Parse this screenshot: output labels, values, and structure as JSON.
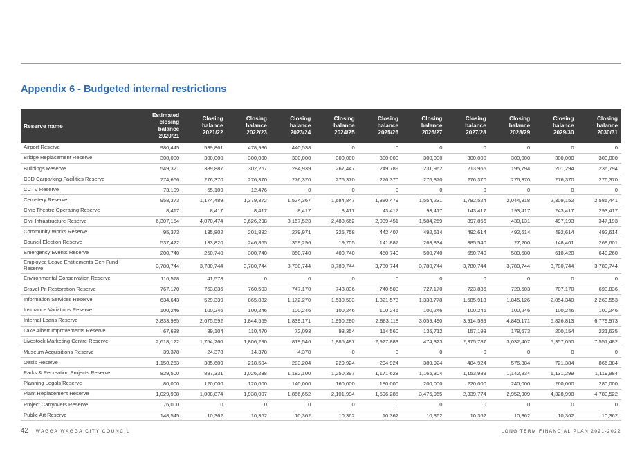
{
  "title": "Appendix 6 - Budgeted internal restrictions",
  "table": {
    "headers": [
      "Reserve name",
      "Estimated closing balance 2020/21",
      "Closing balance 2021/22",
      "Closing balance 2022/23",
      "Closing balance 2023/24",
      "Closing balance 2024/25",
      "Closing balance 2025/26",
      "Closing balance 2026/27",
      "Closing balance 2027/28",
      "Closing balance 2028/29",
      "Closing balance 2029/30",
      "Closing balance 2030/31"
    ],
    "rows": [
      [
        "Airport Reserve",
        "980,445",
        "539,861",
        "478,986",
        "440,538",
        "0",
        "0",
        "0",
        "0",
        "0",
        "0",
        "0"
      ],
      [
        "Bridge Replacement Reserve",
        "300,000",
        "300,000",
        "300,000",
        "300,000",
        "300,000",
        "300,000",
        "300,000",
        "300,000",
        "300,000",
        "300,000",
        "300,000"
      ],
      [
        "Buildings Reserve",
        "549,321",
        "389,887",
        "302,267",
        "284,939",
        "267,447",
        "249,789",
        "231,962",
        "213,965",
        "195,794",
        "201,294",
        "236,794"
      ],
      [
        "CBD Carparking Facilities Reserve",
        "774,666",
        "276,370",
        "276,370",
        "276,370",
        "276,370",
        "276,370",
        "276,370",
        "276,370",
        "276,370",
        "276,370",
        "276,370"
      ],
      [
        "CCTV Reserve",
        "73,109",
        "55,109",
        "12,476",
        "0",
        "0",
        "0",
        "0",
        "0",
        "0",
        "0",
        "0"
      ],
      [
        "Cemetery Reserve",
        "958,373",
        "1,174,489",
        "1,379,372",
        "1,524,367",
        "1,684,847",
        "1,380,479",
        "1,554,231",
        "1,792,524",
        "2,044,818",
        "2,309,152",
        "2,585,441"
      ],
      [
        "Civic Theatre Operating Reserve",
        "8,417",
        "8,417",
        "8,417",
        "8,417",
        "8,417",
        "43,417",
        "93,417",
        "143,417",
        "193,417",
        "243,417",
        "293,417"
      ],
      [
        "Civil Infrastructure Reserve",
        "6,307,154",
        "4,070,474",
        "3,626,298",
        "3,167,523",
        "2,488,662",
        "2,039,451",
        "1,584,269",
        "897,856",
        "430,131",
        "497,193",
        "347,193"
      ],
      [
        "Community Works Reserve",
        "95,373",
        "135,802",
        "201,882",
        "279,971",
        "325,758",
        "442,407",
        "492,614",
        "492,614",
        "492,614",
        "492,614",
        "492,614"
      ],
      [
        "Council Election Reserve",
        "537,422",
        "133,820",
        "246,865",
        "359,296",
        "19,705",
        "141,887",
        "263,834",
        "385,540",
        "27,200",
        "148,401",
        "269,601"
      ],
      [
        "Emergency Events Reserve",
        "200,740",
        "250,740",
        "300,740",
        "350,740",
        "400,740",
        "450,740",
        "500,740",
        "550,740",
        "580,580",
        "610,420",
        "640,260"
      ],
      [
        "Employee Leave Entitlements Gen Fund Reserve",
        "3,780,744",
        "3,780,744",
        "3,780,744",
        "3,780,744",
        "3,780,744",
        "3,780,744",
        "3,780,744",
        "3,780,744",
        "3,780,744",
        "3,780,744",
        "3,780,744"
      ],
      [
        "Environmental Conservation Reserve",
        "116,578",
        "41,578",
        "0",
        "0",
        "0",
        "0",
        "0",
        "0",
        "0",
        "0",
        "0"
      ],
      [
        "Gravel Pit Restoration Reserve",
        "767,170",
        "763,836",
        "760,503",
        "747,170",
        "743,836",
        "740,503",
        "727,170",
        "723,836",
        "720,503",
        "707,170",
        "693,836"
      ],
      [
        "Information Services Reserve",
        "634,643",
        "529,339",
        "865,882",
        "1,172,270",
        "1,530,503",
        "1,321,578",
        "1,338,778",
        "1,585,913",
        "1,845,126",
        "2,054,340",
        "2,263,553"
      ],
      [
        "Insurance Variations Reserve",
        "100,246",
        "100,246",
        "100,246",
        "100,246",
        "100,246",
        "100,246",
        "100,246",
        "100,246",
        "100,246",
        "100,246",
        "100,246"
      ],
      [
        "Internal Loans Reserve",
        "3,833,985",
        "2,675,592",
        "1,844,559",
        "1,839,171",
        "1,950,280",
        "2,883,118",
        "3,059,490",
        "3,914,589",
        "4,845,171",
        "5,826,813",
        "6,779,973"
      ],
      [
        "Lake Albert Improvements Reserve",
        "67,688",
        "89,104",
        "110,470",
        "72,093",
        "93,354",
        "114,560",
        "135,712",
        "157,193",
        "178,673",
        "200,154",
        "221,635"
      ],
      [
        "Livestock Marketing Centre Reserve",
        "2,618,122",
        "1,754,260",
        "1,806,290",
        "819,546",
        "1,885,487",
        "2,927,883",
        "474,323",
        "2,375,787",
        "3,032,407",
        "5,357,050",
        "7,551,482"
      ],
      [
        "Museum Acquisitions Reserve",
        "39,378",
        "24,378",
        "14,378",
        "4,378",
        "0",
        "0",
        "0",
        "0",
        "0",
        "0",
        "0"
      ],
      [
        "Oasis Reserve",
        "1,150,263",
        "385,609",
        "218,504",
        "283,204",
        "229,924",
        "294,924",
        "389,924",
        "484,924",
        "576,384",
        "721,384",
        "866,384"
      ],
      [
        "Parks & Recreation Projects Reserve",
        "829,500",
        "897,331",
        "1,026,238",
        "1,182,100",
        "1,250,397",
        "1,171,628",
        "1,165,304",
        "1,153,989",
        "1,142,834",
        "1,131,299",
        "1,119,984"
      ],
      [
        "Planning Legals Reserve",
        "80,000",
        "120,000",
        "120,000",
        "140,000",
        "160,000",
        "180,000",
        "200,000",
        "220,000",
        "240,000",
        "260,000",
        "280,000"
      ],
      [
        "Plant Replacement Reserve",
        "1,029,908",
        "1,008,874",
        "1,938,007",
        "1,866,652",
        "2,101,994",
        "1,596,285",
        "3,475,965",
        "2,339,774",
        "2,952,909",
        "4,328,998",
        "4,780,522"
      ],
      [
        "Project Carryovers Reserve",
        "76,000",
        "0",
        "0",
        "0",
        "0",
        "0",
        "0",
        "0",
        "0",
        "0",
        "0"
      ],
      [
        "Public Art Reserve",
        "148,545",
        "10,362",
        "10,362",
        "10,362",
        "10,362",
        "10,362",
        "10,362",
        "10,362",
        "10,362",
        "10,362",
        "10,362"
      ]
    ]
  },
  "footer": {
    "page_number": "42",
    "council": "WAGGA WAGGA CITY COUNCIL",
    "document": "LONG TERM FINANCIAL PLAN 2021-2022"
  }
}
